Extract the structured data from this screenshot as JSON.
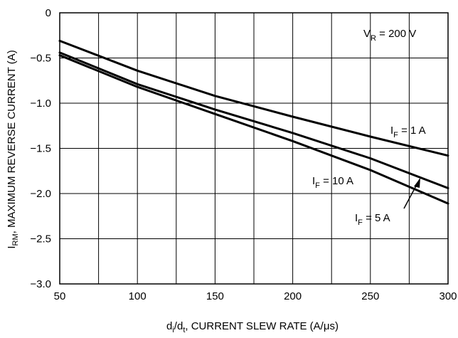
{
  "chart_data": {
    "type": "line",
    "xlabel": {
      "main": "d",
      "sub1": "i",
      "mid": "/d",
      "sub2": "t",
      "rest": ", CURRENT SLEW RATE (A/μs)"
    },
    "ylabel": {
      "main": "I",
      "sub": "RM",
      "rest": ", MAXIMUM REVERSE CURRENT (A)"
    },
    "xlim": [
      50,
      300
    ],
    "ylim": [
      -3.0,
      0
    ],
    "xticks": [
      50,
      100,
      150,
      200,
      250,
      300
    ],
    "yticks": [
      0,
      -0.5,
      -1.0,
      -1.5,
      -2.0,
      -2.5,
      -3.0
    ],
    "ytick_labels": [
      "0",
      "−0.5",
      "−1.0",
      "−1.5",
      "−2.0",
      "−2.5",
      "−3.0"
    ],
    "grid": true,
    "condition": {
      "main": "V",
      "sub": "R",
      "rest": " = 200 V"
    },
    "series": [
      {
        "name": "I_F = 1 A",
        "label": {
          "main": "I",
          "sub": "F",
          "rest": " = 1 A"
        },
        "x": [
          50,
          100,
          150,
          200,
          250,
          300
        ],
        "y": [
          -0.31,
          -0.64,
          -0.92,
          -1.15,
          -1.37,
          -1.58
        ]
      },
      {
        "name": "I_F = 10 A",
        "label": {
          "main": "I",
          "sub": "F",
          "rest": " = 10 A"
        },
        "x": [
          50,
          100,
          150,
          200,
          250,
          300
        ],
        "y": [
          -0.44,
          -0.79,
          -1.07,
          -1.33,
          -1.61,
          -1.94
        ]
      },
      {
        "name": "I_F = 5 A",
        "label": {
          "main": "I",
          "sub": "F",
          "rest": " = 5 A"
        },
        "x": [
          50,
          100,
          150,
          200,
          250,
          300
        ],
        "y": [
          -0.47,
          -0.82,
          -1.12,
          -1.42,
          -1.74,
          -2.11
        ]
      }
    ]
  }
}
